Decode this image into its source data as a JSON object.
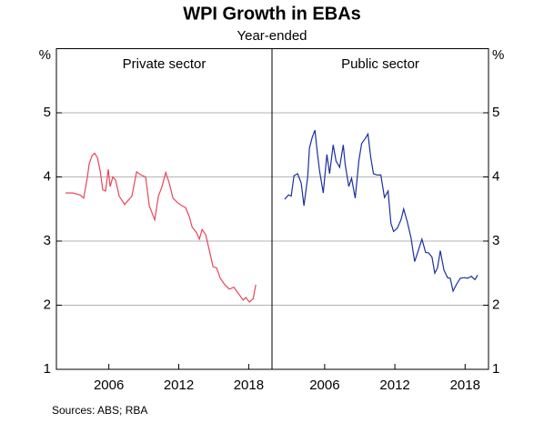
{
  "title": "WPI Growth in EBAs",
  "subtitle": "Year-ended",
  "source": "Sources:    ABS; RBA",
  "chart_data": [
    {
      "type": "line",
      "title": "Private sector",
      "ylabel": "%",
      "grid": true,
      "y_axis_side": "left",
      "xlim": [
        2001.5,
        2020
      ],
      "xticks": [
        2006,
        2012,
        2018
      ],
      "ylim": [
        1,
        6
      ],
      "yticks": [
        1,
        2,
        3,
        4,
        5
      ],
      "series": [
        {
          "name": "Private sector",
          "color": "#e8455a",
          "x": [
            2002.28,
            2002.91,
            2003.53,
            2003.84,
            2004.16,
            2004.31,
            2004.55,
            2004.78,
            2005.02,
            2005.25,
            2005.48,
            2005.72,
            2005.95,
            2006.11,
            2006.34,
            2006.58,
            2006.89,
            2007.36,
            2007.59,
            2007.98,
            2008.38,
            2008.77,
            2009.16,
            2009.47,
            2009.94,
            2010.25,
            2010.56,
            2010.88,
            2011.19,
            2011.5,
            2011.89,
            2012.28,
            2012.59,
            2012.91,
            2013.14,
            2013.53,
            2013.77,
            2014.0,
            2014.31,
            2014.63,
            2014.94,
            2015.25,
            2015.56,
            2015.95,
            2016.34,
            2016.73,
            2017.13,
            2017.52,
            2017.75,
            2018.06,
            2018.38,
            2018.61
          ],
          "values": [
            3.75,
            3.75,
            3.72,
            3.67,
            4.0,
            4.2,
            4.33,
            4.37,
            4.3,
            4.1,
            3.8,
            3.78,
            4.12,
            3.85,
            4.0,
            3.95,
            3.7,
            3.57,
            3.62,
            3.7,
            4.08,
            4.03,
            4.0,
            3.55,
            3.33,
            3.7,
            3.85,
            4.07,
            3.9,
            3.67,
            3.6,
            3.55,
            3.52,
            3.38,
            3.22,
            3.13,
            3.03,
            3.18,
            3.1,
            2.85,
            2.6,
            2.58,
            2.42,
            2.32,
            2.25,
            2.28,
            2.18,
            2.08,
            2.12,
            2.05,
            2.1,
            2.32
          ]
        }
      ]
    },
    {
      "type": "line",
      "title": "Public sector",
      "ylabel": "%",
      "grid": true,
      "y_axis_side": "right",
      "xlim": [
        2001.5,
        2020
      ],
      "xticks": [
        2006,
        2012,
        2018
      ],
      "ylim": [
        1,
        6
      ],
      "yticks": [
        1,
        2,
        3,
        4,
        5
      ],
      "series": [
        {
          "name": "Public sector",
          "color": "#1c2f9e",
          "x": [
            2002.59,
            2002.91,
            2003.14,
            2003.38,
            2003.69,
            2004.0,
            2004.23,
            2004.55,
            2004.7,
            2004.94,
            2005.17,
            2005.33,
            2005.56,
            2005.88,
            2006.19,
            2006.42,
            2006.73,
            2006.97,
            2007.28,
            2007.59,
            2007.75,
            2008.06,
            2008.3,
            2008.61,
            2008.92,
            2009.16,
            2009.47,
            2009.7,
            2009.94,
            2010.17,
            2010.48,
            2010.8,
            2011.11,
            2011.42,
            2011.66,
            2011.89,
            2012.2,
            2012.52,
            2012.75,
            2013.06,
            2013.38,
            2013.69,
            2014.0,
            2014.31,
            2014.63,
            2014.86,
            2015.17,
            2015.41,
            2015.64,
            2015.88,
            2016.19,
            2016.5,
            2016.73,
            2016.97,
            2017.28,
            2017.59,
            2017.91,
            2018.22,
            2018.53,
            2018.84,
            2019.08
          ],
          "values": [
            3.65,
            3.72,
            3.7,
            4.02,
            4.05,
            3.9,
            3.55,
            4.0,
            4.45,
            4.62,
            4.73,
            4.45,
            4.1,
            3.75,
            4.35,
            4.05,
            4.5,
            4.25,
            4.15,
            4.5,
            4.2,
            3.85,
            3.98,
            3.67,
            4.25,
            4.52,
            4.6,
            4.67,
            4.3,
            4.05,
            4.03,
            4.03,
            3.68,
            3.78,
            3.28,
            3.15,
            3.2,
            3.33,
            3.5,
            3.3,
            3.05,
            2.68,
            2.85,
            3.03,
            2.82,
            2.82,
            2.75,
            2.5,
            2.58,
            2.85,
            2.55,
            2.43,
            2.42,
            2.22,
            2.33,
            2.42,
            2.43,
            2.42,
            2.45,
            2.4,
            2.47
          ]
        }
      ]
    }
  ]
}
